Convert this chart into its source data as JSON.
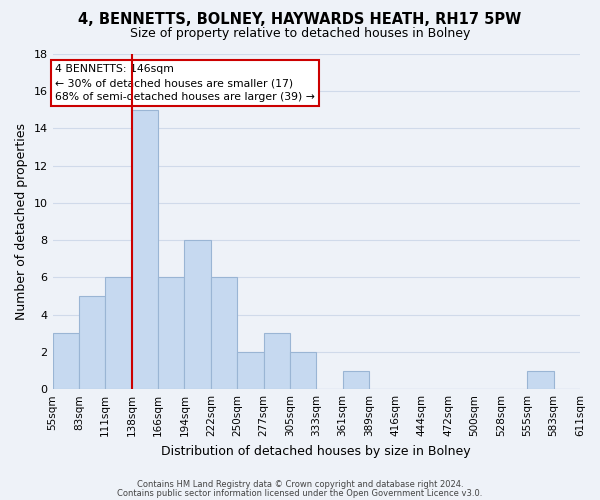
{
  "title1": "4, BENNETTS, BOLNEY, HAYWARDS HEATH, RH17 5PW",
  "title2": "Size of property relative to detached houses in Bolney",
  "xlabel": "Distribution of detached houses by size in Bolney",
  "ylabel": "Number of detached properties",
  "bin_edges": [
    "55sqm",
    "83sqm",
    "111sqm",
    "138sqm",
    "166sqm",
    "194sqm",
    "222sqm",
    "250sqm",
    "277sqm",
    "305sqm",
    "333sqm",
    "361sqm",
    "389sqm",
    "416sqm",
    "444sqm",
    "472sqm",
    "500sqm",
    "528sqm",
    "555sqm",
    "583sqm",
    "611sqm"
  ],
  "bar_heights": [
    3,
    5,
    6,
    15,
    6,
    8,
    6,
    2,
    3,
    2,
    0,
    1,
    0,
    0,
    0,
    0,
    0,
    0,
    1,
    0
  ],
  "bar_color": "#c6d9f0",
  "bar_edge_color": "#9ab5d4",
  "red_line_bin": 3,
  "annotation_title": "4 BENNETTS: 146sqm",
  "annotation_line1": "← 30% of detached houses are smaller (17)",
  "annotation_line2": "68% of semi-detached houses are larger (39) →",
  "annotation_box_facecolor": "#ffffff",
  "annotation_box_edgecolor": "#cc0000",
  "red_line_color": "#cc0000",
  "ylim": [
    0,
    18
  ],
  "yticks": [
    0,
    2,
    4,
    6,
    8,
    10,
    12,
    14,
    16,
    18
  ],
  "footer1": "Contains HM Land Registry data © Crown copyright and database right 2024.",
  "footer2": "Contains public sector information licensed under the Open Government Licence v3.0.",
  "grid_color": "#d0daea",
  "background_color": "#eef2f8"
}
